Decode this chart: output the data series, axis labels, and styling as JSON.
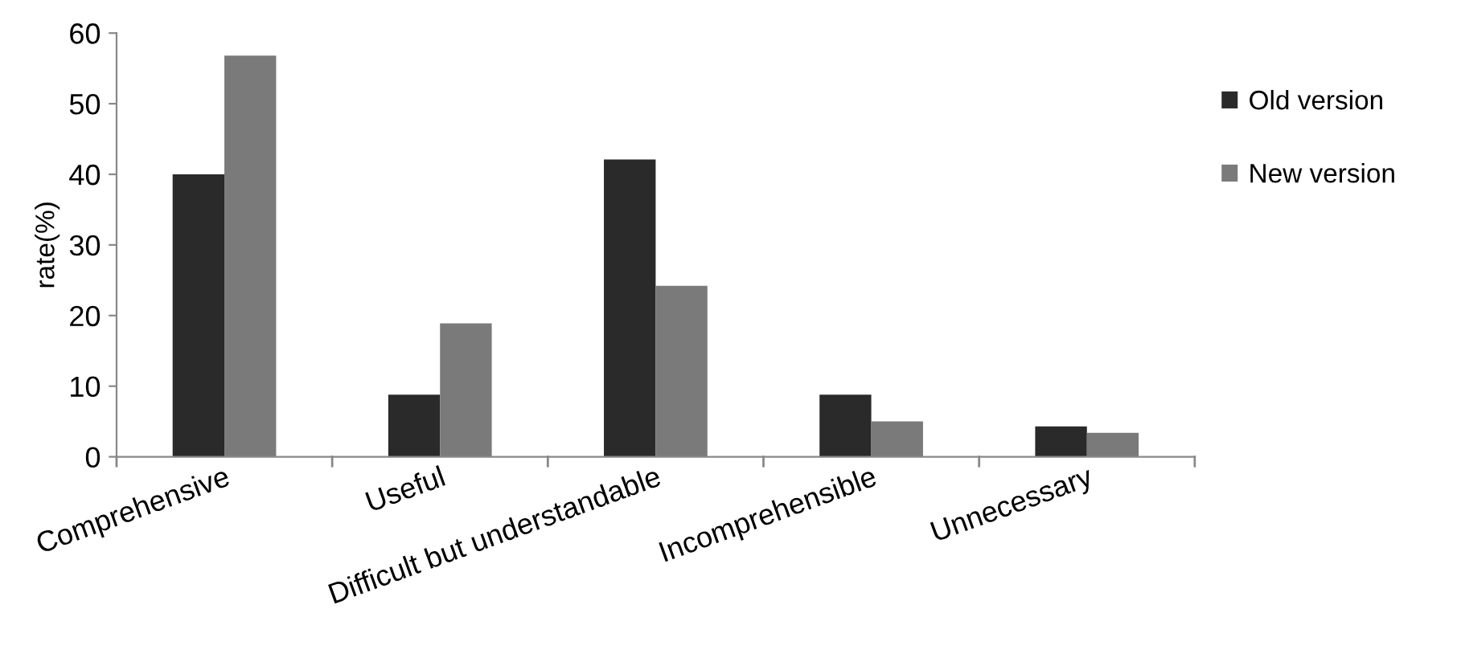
{
  "chart_data": {
    "type": "bar",
    "ylabel": "rate(%)",
    "categories": [
      "Comprehensive",
      "Useful",
      "Difficult but understandable",
      "Incomprehensible",
      "Unnecessary"
    ],
    "series": [
      {
        "name": "Old version",
        "color": "#2a2a2a",
        "values": [
          40,
          8.8,
          42.1,
          8.8,
          4.3
        ]
      },
      {
        "name": "New version",
        "color": "#7a7a7a",
        "values": [
          56.8,
          18.9,
          24.2,
          5.0,
          3.4
        ]
      }
    ],
    "ylim": [
      0,
      60
    ],
    "yticks": [
      0,
      10,
      20,
      30,
      40,
      50,
      60
    ],
    "grid": false,
    "legend": "right"
  }
}
